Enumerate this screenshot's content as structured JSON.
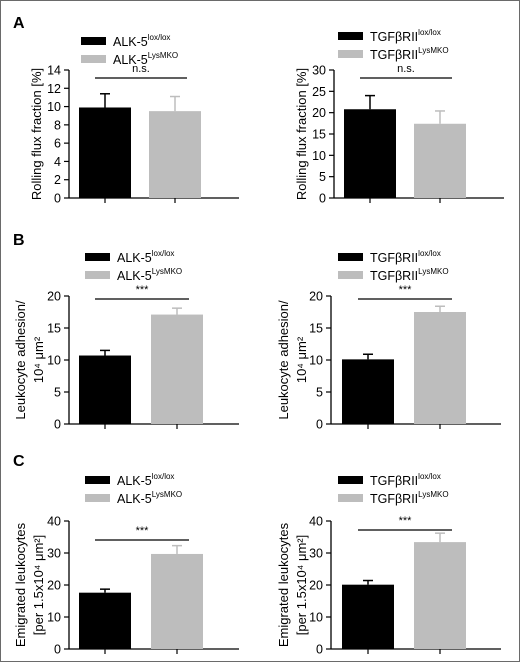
{
  "panels": [
    "A",
    "B",
    "C"
  ],
  "chart_data": [
    {
      "type": "bar",
      "panel": "A",
      "ylabel": [
        "Rolling flux fraction [%]"
      ],
      "ylim": [
        0,
        14
      ],
      "yticks": [
        0,
        2,
        4,
        6,
        8,
        10,
        12,
        14
      ],
      "series": [
        {
          "name": "ALK-5",
          "sup": "lox/lox",
          "value": 9.9,
          "error": 1.5,
          "color": "#000000"
        },
        {
          "name": "ALK-5",
          "sup": "LysMKO",
          "value": 9.5,
          "error": 1.6,
          "color": "#bdbdbd"
        }
      ],
      "significance": "n.s."
    },
    {
      "type": "bar",
      "panel": "A",
      "ylabel": [
        "Rolling flux fraction [%]"
      ],
      "ylim": [
        0,
        30
      ],
      "yticks": [
        0,
        5,
        10,
        15,
        20,
        25,
        30
      ],
      "series": [
        {
          "name": "TGFβRII",
          "sup": "lox/lox",
          "value": 20.8,
          "error": 3.2,
          "color": "#000000"
        },
        {
          "name": "TGFβRII",
          "sup": "LysMKO",
          "value": 17.4,
          "error": 3.0,
          "color": "#bdbdbd"
        }
      ],
      "significance": "n.s."
    },
    {
      "type": "bar",
      "panel": "B",
      "ylabel": [
        "Leukocyte adhesion/",
        "10⁴ μm²"
      ],
      "ylim": [
        0,
        20
      ],
      "yticks": [
        0,
        5,
        10,
        15,
        20
      ],
      "series": [
        {
          "name": "ALK-5",
          "sup": "lox/lox",
          "value": 10.7,
          "error": 0.8,
          "color": "#000000"
        },
        {
          "name": "ALK-5",
          "sup": "LysMKO",
          "value": 17.1,
          "error": 1.0,
          "color": "#bdbdbd"
        }
      ],
      "significance": "***"
    },
    {
      "type": "bar",
      "panel": "B",
      "ylabel": [
        "Leukocyte adhesion/",
        "10⁴ μm²"
      ],
      "ylim": [
        0,
        20
      ],
      "yticks": [
        0,
        5,
        10,
        15,
        20
      ],
      "series": [
        {
          "name": "TGFβRII",
          "sup": "lox/lox",
          "value": 10.1,
          "error": 0.8,
          "color": "#000000"
        },
        {
          "name": "TGFβRII",
          "sup": "LysMKO",
          "value": 17.5,
          "error": 0.9,
          "color": "#bdbdbd"
        }
      ],
      "significance": "***"
    },
    {
      "type": "bar",
      "panel": "C",
      "ylabel": [
        "Emigrated leukocytes",
        "[per 1.5x10⁴ μm²]"
      ],
      "ylim": [
        0,
        40
      ],
      "yticks": [
        0,
        10,
        20,
        30,
        40
      ],
      "series": [
        {
          "name": "ALK-5",
          "sup": "lox/lox",
          "value": 17.6,
          "error": 1.1,
          "color": "#000000"
        },
        {
          "name": "ALK-5",
          "sup": "LysMKO",
          "value": 29.7,
          "error": 2.6,
          "color": "#bdbdbd"
        }
      ],
      "significance": "***"
    },
    {
      "type": "bar",
      "panel": "C",
      "ylabel": [
        "Emigrated leukocytes",
        "[per 1.5x10⁴ μm²]"
      ],
      "ylim": [
        0,
        40
      ],
      "yticks": [
        0,
        10,
        20,
        30,
        40
      ],
      "series": [
        {
          "name": "TGFβRII",
          "sup": "lox/lox",
          "value": 20.1,
          "error": 1.3,
          "color": "#000000"
        },
        {
          "name": "TGFβRII",
          "sup": "LysMKO",
          "value": 33.4,
          "error": 2.8,
          "color": "#bdbdbd"
        }
      ],
      "significance": "***"
    }
  ]
}
